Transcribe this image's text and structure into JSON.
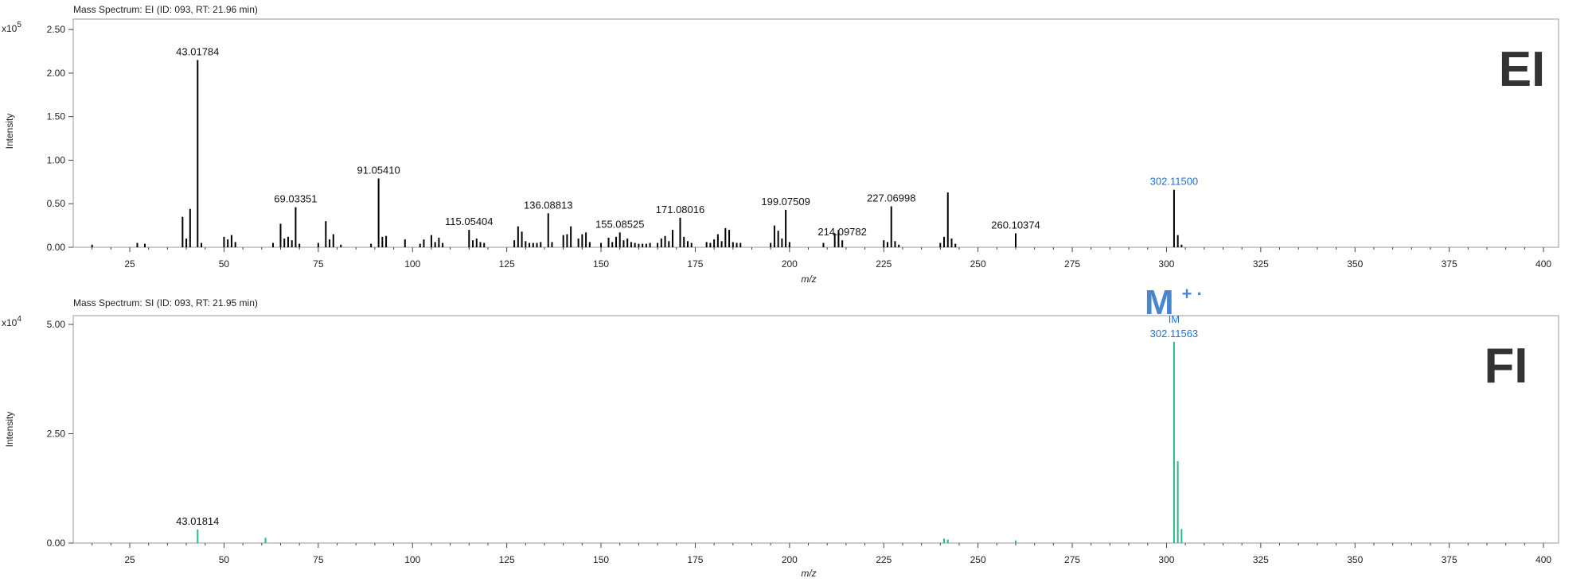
{
  "chart_data": [
    {
      "type": "bar",
      "title": "Mass Spectrum: EI (ID: 093, RT: 21.96 min)",
      "xlabel": "m/z",
      "ylabel": "Intensity",
      "y_multiplier": "x10",
      "y_exponent": "5",
      "panel_label": "EI",
      "xlim": [
        10,
        404
      ],
      "ylim": [
        0,
        2.62
      ],
      "x_ticks": [
        "25",
        "50",
        "75",
        "100",
        "125",
        "150",
        "175",
        "200",
        "225",
        "250",
        "275",
        "300",
        "325",
        "350",
        "375",
        "400"
      ],
      "y_ticks": [
        "0.00",
        "0.50",
        "1.00",
        "1.50",
        "2.00",
        "2.50"
      ],
      "grid": false,
      "bar_color": "#000000",
      "peaks": [
        {
          "x": 15,
          "y": 0.03
        },
        {
          "x": 27,
          "y": 0.05
        },
        {
          "x": 29,
          "y": 0.04
        },
        {
          "x": 39,
          "y": 0.35
        },
        {
          "x": 40,
          "y": 0.1
        },
        {
          "x": 41,
          "y": 0.44
        },
        {
          "x": 43,
          "y": 2.15,
          "label": "43.01784"
        },
        {
          "x": 44,
          "y": 0.05
        },
        {
          "x": 50,
          "y": 0.12
        },
        {
          "x": 51,
          "y": 0.09
        },
        {
          "x": 52,
          "y": 0.14
        },
        {
          "x": 53,
          "y": 0.06
        },
        {
          "x": 63,
          "y": 0.05
        },
        {
          "x": 65,
          "y": 0.27
        },
        {
          "x": 66,
          "y": 0.1
        },
        {
          "x": 67,
          "y": 0.12
        },
        {
          "x": 68,
          "y": 0.08
        },
        {
          "x": 69,
          "y": 0.46,
          "label": "69.03351"
        },
        {
          "x": 70,
          "y": 0.04
        },
        {
          "x": 75,
          "y": 0.05
        },
        {
          "x": 77,
          "y": 0.3
        },
        {
          "x": 78,
          "y": 0.09
        },
        {
          "x": 79,
          "y": 0.15
        },
        {
          "x": 81,
          "y": 0.03
        },
        {
          "x": 89,
          "y": 0.04
        },
        {
          "x": 91,
          "y": 0.79,
          "label": "91.05410"
        },
        {
          "x": 92,
          "y": 0.12
        },
        {
          "x": 93,
          "y": 0.13
        },
        {
          "x": 98,
          "y": 0.09
        },
        {
          "x": 102,
          "y": 0.04
        },
        {
          "x": 103,
          "y": 0.09
        },
        {
          "x": 105,
          "y": 0.14
        },
        {
          "x": 106,
          "y": 0.06
        },
        {
          "x": 107,
          "y": 0.11
        },
        {
          "x": 108,
          "y": 0.05
        },
        {
          "x": 115,
          "y": 0.2,
          "label": "115.05404"
        },
        {
          "x": 116,
          "y": 0.08
        },
        {
          "x": 117,
          "y": 0.1
        },
        {
          "x": 118,
          "y": 0.06
        },
        {
          "x": 119,
          "y": 0.05
        },
        {
          "x": 127,
          "y": 0.08
        },
        {
          "x": 128,
          "y": 0.24
        },
        {
          "x": 129,
          "y": 0.18
        },
        {
          "x": 130,
          "y": 0.07
        },
        {
          "x": 131,
          "y": 0.05
        },
        {
          "x": 132,
          "y": 0.05
        },
        {
          "x": 133,
          "y": 0.05
        },
        {
          "x": 134,
          "y": 0.06
        },
        {
          "x": 136,
          "y": 0.39,
          "label": "136.08813"
        },
        {
          "x": 137,
          "y": 0.06
        },
        {
          "x": 140,
          "y": 0.14
        },
        {
          "x": 141,
          "y": 0.15
        },
        {
          "x": 142,
          "y": 0.24
        },
        {
          "x": 144,
          "y": 0.1
        },
        {
          "x": 145,
          "y": 0.15
        },
        {
          "x": 146,
          "y": 0.17
        },
        {
          "x": 147,
          "y": 0.06
        },
        {
          "x": 150,
          "y": 0.05
        },
        {
          "x": 152,
          "y": 0.11
        },
        {
          "x": 153,
          "y": 0.06
        },
        {
          "x": 154,
          "y": 0.12
        },
        {
          "x": 155,
          "y": 0.17,
          "label": "155.08525"
        },
        {
          "x": 156,
          "y": 0.08
        },
        {
          "x": 157,
          "y": 0.1
        },
        {
          "x": 158,
          "y": 0.06
        },
        {
          "x": 159,
          "y": 0.05
        },
        {
          "x": 160,
          "y": 0.04
        },
        {
          "x": 161,
          "y": 0.04
        },
        {
          "x": 162,
          "y": 0.04
        },
        {
          "x": 163,
          "y": 0.05
        },
        {
          "x": 165,
          "y": 0.05
        },
        {
          "x": 166,
          "y": 0.1
        },
        {
          "x": 167,
          "y": 0.13
        },
        {
          "x": 168,
          "y": 0.07
        },
        {
          "x": 169,
          "y": 0.2
        },
        {
          "x": 171,
          "y": 0.34,
          "label": "171.08016"
        },
        {
          "x": 172,
          "y": 0.12
        },
        {
          "x": 173,
          "y": 0.07
        },
        {
          "x": 174,
          "y": 0.05
        },
        {
          "x": 178,
          "y": 0.06
        },
        {
          "x": 179,
          "y": 0.05
        },
        {
          "x": 180,
          "y": 0.09
        },
        {
          "x": 181,
          "y": 0.15
        },
        {
          "x": 182,
          "y": 0.07
        },
        {
          "x": 183,
          "y": 0.22
        },
        {
          "x": 184,
          "y": 0.2
        },
        {
          "x": 185,
          "y": 0.06
        },
        {
          "x": 186,
          "y": 0.05
        },
        {
          "x": 187,
          "y": 0.05
        },
        {
          "x": 195,
          "y": 0.05
        },
        {
          "x": 196,
          "y": 0.25
        },
        {
          "x": 197,
          "y": 0.19
        },
        {
          "x": 198,
          "y": 0.1
        },
        {
          "x": 199,
          "y": 0.43,
          "label": "199.07509"
        },
        {
          "x": 200,
          "y": 0.06
        },
        {
          "x": 209,
          "y": 0.05
        },
        {
          "x": 212,
          "y": 0.16
        },
        {
          "x": 213,
          "y": 0.2
        },
        {
          "x": 214,
          "y": 0.08,
          "label": "214.09782"
        },
        {
          "x": 225,
          "y": 0.08
        },
        {
          "x": 226,
          "y": 0.06
        },
        {
          "x": 227,
          "y": 0.47,
          "label": "227.06998"
        },
        {
          "x": 228,
          "y": 0.07
        },
        {
          "x": 229,
          "y": 0.03
        },
        {
          "x": 240,
          "y": 0.05
        },
        {
          "x": 241,
          "y": 0.12
        },
        {
          "x": 242,
          "y": 0.63
        },
        {
          "x": 243,
          "y": 0.1
        },
        {
          "x": 244,
          "y": 0.04
        },
        {
          "x": 260,
          "y": 0.16,
          "label": "260.10374"
        },
        {
          "x": 302,
          "y": 0.66,
          "label": "302.11500",
          "label_color": "#1f73d8"
        },
        {
          "x": 303,
          "y": 0.14
        },
        {
          "x": 304,
          "y": 0.03
        }
      ]
    },
    {
      "type": "bar",
      "title": "Mass Spectrum: SI (ID: 093, RT: 21.95 min)",
      "xlabel": "m/z",
      "ylabel": "Intensity",
      "y_multiplier": "x10",
      "y_exponent": "4",
      "panel_label": "FI",
      "ion_label": "M",
      "ion_label_charge": "+ ·",
      "xlim": [
        10,
        404
      ],
      "ylim": [
        0,
        5.2
      ],
      "x_ticks": [
        "25",
        "50",
        "75",
        "100",
        "125",
        "150",
        "175",
        "200",
        "225",
        "250",
        "275",
        "300",
        "325",
        "350",
        "375",
        "400"
      ],
      "y_ticks": [
        "0.00",
        "2.50",
        "5.00"
      ],
      "grid": false,
      "bar_color": "#2fb58c",
      "peaks": [
        {
          "x": 43,
          "y": 0.31,
          "label": "43.01814"
        },
        {
          "x": 61,
          "y": 0.12
        },
        {
          "x": 241,
          "y": 0.1
        },
        {
          "x": 242,
          "y": 0.08
        },
        {
          "x": 260,
          "y": 0.06
        },
        {
          "x": 302,
          "y": 4.6,
          "label": "IM\n302.11563",
          "label_color": "#1f73d8"
        },
        {
          "x": 303,
          "y": 1.87
        },
        {
          "x": 304,
          "y": 0.32
        }
      ]
    }
  ],
  "colors": {
    "axis": "#444444",
    "text": "#222222",
    "accent": "#1f73d8",
    "ion_label": "#4a86cf",
    "panel_label": "#333333"
  }
}
